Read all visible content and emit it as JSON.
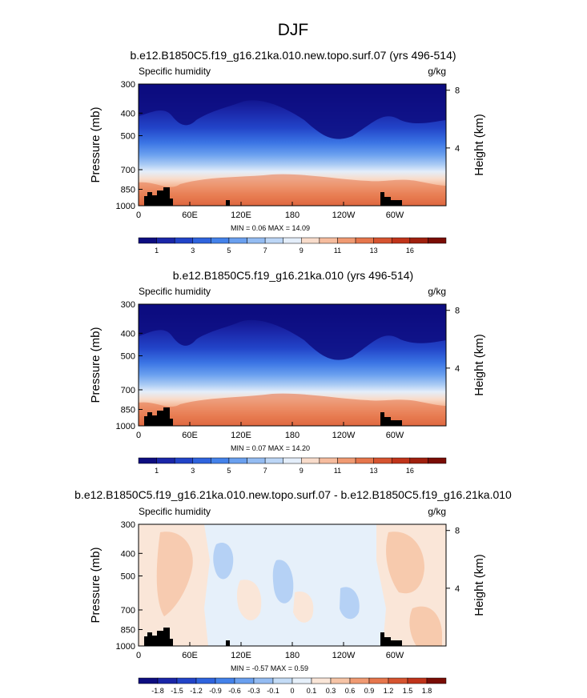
{
  "figure": {
    "title": "DJF"
  },
  "chart_data": [
    {
      "type": "heatmap",
      "title": "b.e12.B1850C5.f19_g16.21ka.010.new.topo.surf.07 (yrs 496-514)",
      "left_label": "Specific humidity",
      "right_label": "g/kg",
      "ylabel": "Pressure (mb)",
      "ylabel_right": "Height (km)",
      "x_ticks": [
        "0",
        "60E",
        "120E",
        "180",
        "120W",
        "60W"
      ],
      "x_tick_values": [
        0,
        60,
        120,
        180,
        240,
        300
      ],
      "xlim": [
        0,
        360
      ],
      "y_ticks": [
        "300",
        "400",
        "500",
        "700",
        "850",
        "1000"
      ],
      "y_tick_values": [
        300,
        400,
        500,
        700,
        850,
        1000
      ],
      "ylim": [
        1000,
        300
      ],
      "height_ticks": [
        "8",
        "4"
      ],
      "height_tick_values": [
        8,
        4
      ],
      "stats": "MIN =   0.06  MAX =   14.09",
      "colorbar": {
        "labels": [
          "1",
          "3",
          "5",
          "7",
          "9",
          "11",
          "13",
          "16"
        ],
        "colors": [
          "#0d0d80",
          "#1a26a8",
          "#2244c8",
          "#2f64de",
          "#4482ea",
          "#6aa0ef",
          "#94bcf2",
          "#bcd6f6",
          "#e4eefa",
          "#f8dccb",
          "#f6bc9e",
          "#f09a72",
          "#e6764c",
          "#d65430",
          "#c0341a",
          "#a0200e",
          "#7a0c04"
        ]
      }
    },
    {
      "type": "heatmap",
      "title": "b.e12.B1850C5.f19_g16.21ka.010 (yrs 496-514)",
      "left_label": "Specific humidity",
      "right_label": "g/kg",
      "ylabel": "Pressure (mb)",
      "ylabel_right": "Height (km)",
      "x_ticks": [
        "0",
        "60E",
        "120E",
        "180",
        "120W",
        "60W"
      ],
      "x_tick_values": [
        0,
        60,
        120,
        180,
        240,
        300
      ],
      "xlim": [
        0,
        360
      ],
      "y_ticks": [
        "300",
        "400",
        "500",
        "700",
        "850",
        "1000"
      ],
      "y_tick_values": [
        300,
        400,
        500,
        700,
        850,
        1000
      ],
      "ylim": [
        1000,
        300
      ],
      "height_ticks": [
        "8",
        "4"
      ],
      "height_tick_values": [
        8,
        4
      ],
      "stats": "MIN =   0.07  MAX =   14.20",
      "colorbar": {
        "labels": [
          "1",
          "3",
          "5",
          "7",
          "9",
          "11",
          "13",
          "16"
        ],
        "colors": [
          "#0d0d80",
          "#1a26a8",
          "#2244c8",
          "#2f64de",
          "#4482ea",
          "#6aa0ef",
          "#94bcf2",
          "#bcd6f6",
          "#e4eefa",
          "#f8dccb",
          "#f6bc9e",
          "#f09a72",
          "#e6764c",
          "#d65430",
          "#c0341a",
          "#a0200e",
          "#7a0c04"
        ]
      }
    },
    {
      "type": "heatmap",
      "title": "b.e12.B1850C5.f19_g16.21ka.010.new.topo.surf.07 - b.e12.B1850C5.f19_g16.21ka.010",
      "left_label": "Specific humidity",
      "right_label": "g/kg",
      "ylabel": "Pressure (mb)",
      "ylabel_right": "Height (km)",
      "x_ticks": [
        "0",
        "60E",
        "120E",
        "180",
        "120W",
        "60W"
      ],
      "x_tick_values": [
        0,
        60,
        120,
        180,
        240,
        300
      ],
      "xlim": [
        0,
        360
      ],
      "y_ticks": [
        "300",
        "400",
        "500",
        "700",
        "850",
        "1000"
      ],
      "y_tick_values": [
        300,
        400,
        500,
        700,
        850,
        1000
      ],
      "ylim": [
        1000,
        300
      ],
      "height_ticks": [
        "8",
        "4"
      ],
      "height_tick_values": [
        8,
        4
      ],
      "stats": "MIN =  -0.57  MAX =   0.59",
      "colorbar": {
        "labels": [
          "-1.8",
          "-1.5",
          "-1.2",
          "-0.9",
          "-0.6",
          "-0.3",
          "-0.1",
          "0",
          "0.1",
          "0.3",
          "0.6",
          "0.9",
          "1.2",
          "1.5",
          "1.8"
        ],
        "colors": [
          "#0d0d80",
          "#1a26a8",
          "#2244c8",
          "#2f64de",
          "#4482ea",
          "#6aa0ef",
          "#94bcf2",
          "#c4dcf6",
          "#e6f0fa",
          "#fae6d8",
          "#f6c4a6",
          "#f09a72",
          "#e6764c",
          "#d65430",
          "#c0341a",
          "#7a0c04"
        ]
      }
    }
  ]
}
